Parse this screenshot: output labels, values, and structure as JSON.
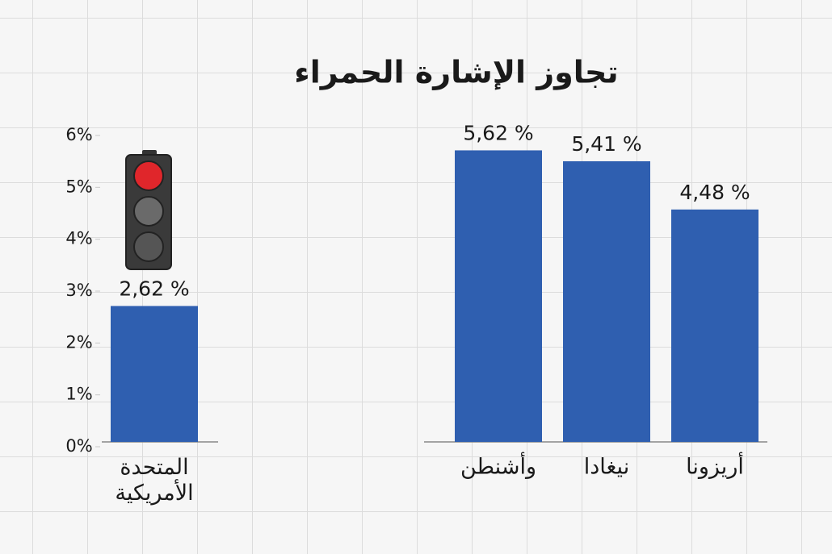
{
  "chart_data": {
    "type": "bar",
    "title": "تجاوز الإشارة الحمراء",
    "categories": [
      "المتحدة الأمريكية",
      "وأشنطن",
      "نيغادا",
      "أريزونا"
    ],
    "values": [
      2.62,
      5.62,
      5.41,
      4.48
    ],
    "value_labels": [
      "2,62 %",
      "5,62 %",
      "5,41 %",
      "4,48 %"
    ],
    "color": "#2f5fb0",
    "ylim": [
      0,
      6
    ],
    "yticks": [
      {
        "value": 0,
        "label": "0%"
      },
      {
        "value": 1,
        "label": "1%"
      },
      {
        "value": 2,
        "label": "2%"
      },
      {
        "value": 3,
        "label": "3%"
      },
      {
        "value": 4,
        "label": "4%"
      },
      {
        "value": 5,
        "label": "5%"
      },
      {
        "value": 6,
        "label": "6%"
      }
    ]
  }
}
